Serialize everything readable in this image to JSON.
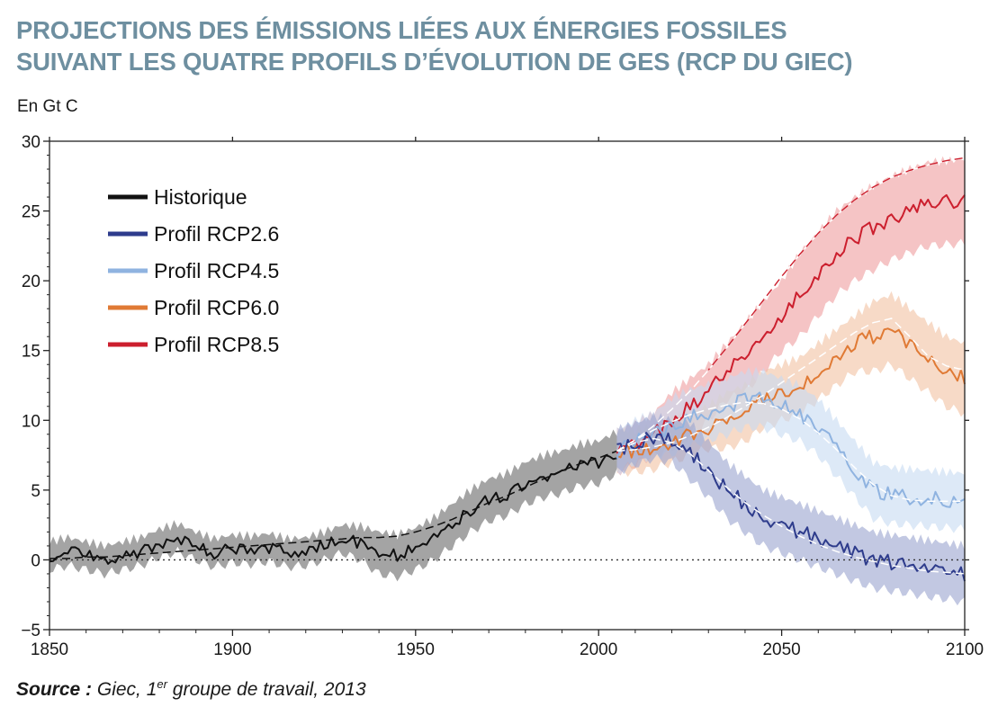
{
  "title": {
    "line1": "PROJECTIONS DES ÉMISSIONS LIÉES AUX ÉNERGIES FOSSILES",
    "line2": "SUIVANT LES QUATRE PROFILS D’ÉVOLUTION DE GES (RCP DU GIEC)"
  },
  "source": {
    "label": "Source :",
    "text_before_sup": " Giec, 1",
    "sup": "er",
    "text_after_sup": " groupe de travail, 2013"
  },
  "colors": {
    "title": "#6e8fa0",
    "historique": "#111111",
    "rcp26": "#2e3c8c",
    "rcp45": "#8fb3e0",
    "rcp60": "#e07a35",
    "rcp85": "#cc1f2e",
    "historique_band": "#9a9a9a",
    "rcp26_band": "#9aa3cf",
    "rcp45_band": "#c6daf2",
    "rcp60_band": "#f2c2a2",
    "rcp85_band": "#ef9d9f"
  },
  "chart_data": {
    "type": "line",
    "title": "PROJECTIONS DES ÉMISSIONS LIÉES AUX ÉNERGIES FOSSILES SUIVANT LES QUATRE PROFILS D’ÉVOLUTION DE GES (RCP DU GIEC)",
    "xlabel": "",
    "ylabel": "En Gt C",
    "xlim": [
      1850,
      2100
    ],
    "ylim": [
      -5,
      30
    ],
    "xticks": [
      1850,
      1900,
      1950,
      2000,
      2050,
      2100
    ],
    "yticks": [
      -5,
      0,
      5,
      10,
      15,
      20,
      25,
      30
    ],
    "grid": false,
    "zero_line": "dotted",
    "legend_position": "top-left",
    "series": [
      {
        "name": "Historique",
        "color": "#111111",
        "band_color": "#9a9a9a",
        "x": [
          1850,
          1855,
          1860,
          1865,
          1870,
          1875,
          1880,
          1885,
          1890,
          1895,
          1900,
          1905,
          1910,
          1915,
          1920,
          1925,
          1930,
          1935,
          1940,
          1945,
          1950,
          1955,
          1960,
          1965,
          1970,
          1975,
          1980,
          1985,
          1990,
          1995,
          2000,
          2005
        ],
        "values": [
          0.3,
          0.6,
          0.3,
          0.0,
          0.3,
          0.6,
          1.2,
          1.6,
          1.0,
          0.5,
          0.8,
          0.7,
          0.9,
          0.5,
          0.6,
          1.0,
          1.5,
          1.2,
          0.5,
          0.3,
          0.8,
          1.5,
          2.5,
          3.5,
          4.3,
          4.7,
          5.5,
          6.0,
          6.3,
          6.8,
          7.0,
          7.7
        ],
        "trend": [
          0.1,
          0.1,
          0.2,
          0.2,
          0.3,
          0.4,
          0.5,
          0.6,
          0.7,
          0.8,
          0.9,
          1.0,
          1.1,
          1.2,
          1.3,
          1.4,
          1.5,
          1.6,
          1.6,
          1.7,
          2.0,
          2.4,
          2.9,
          3.5,
          4.1,
          4.6,
          5.2,
          5.8,
          6.4,
          6.9,
          7.3,
          7.8
        ],
        "band_halfwidth": [
          1.0,
          1.0,
          1.0,
          1.0,
          1.0,
          1.0,
          1.0,
          1.0,
          1.0,
          1.0,
          1.0,
          1.0,
          1.0,
          1.0,
          1.0,
          1.0,
          1.0,
          1.2,
          1.5,
          1.5,
          1.5,
          1.5,
          1.5,
          1.5,
          1.5,
          1.5,
          1.5,
          1.5,
          1.5,
          1.5,
          1.5,
          1.5
        ]
      },
      {
        "name": "Profil RCP2.6",
        "color": "#2e3c8c",
        "band_color": "#9aa3cf",
        "x": [
          2005,
          2010,
          2015,
          2020,
          2025,
          2030,
          2035,
          2040,
          2045,
          2050,
          2055,
          2060,
          2065,
          2070,
          2075,
          2080,
          2085,
          2090,
          2095,
          2100
        ],
        "values": [
          7.8,
          8.3,
          8.8,
          8.5,
          7.8,
          6.5,
          5.0,
          4.0,
          3.0,
          2.5,
          2.0,
          1.5,
          1.0,
          0.5,
          0.0,
          -0.2,
          -0.4,
          -0.6,
          -0.8,
          -1.0
        ],
        "trend": [
          7.8,
          8.4,
          8.7,
          8.4,
          7.6,
          6.4,
          5.2,
          4.1,
          3.2,
          2.4,
          1.7,
          1.1,
          0.6,
          0.2,
          -0.1,
          -0.4,
          -0.6,
          -0.8,
          -0.9,
          -1.0
        ],
        "band_halfwidth": [
          1.5,
          1.5,
          1.5,
          1.5,
          2.0,
          2.0,
          2.0,
          2.0,
          2.0,
          2.0,
          2.0,
          2.0,
          2.0,
          2.0,
          2.0,
          2.0,
          2.0,
          2.0,
          2.0,
          2.0
        ]
      },
      {
        "name": "Profil RCP4.5",
        "color": "#8fb3e0",
        "band_color": "#c6daf2",
        "x": [
          2005,
          2010,
          2015,
          2020,
          2025,
          2030,
          2035,
          2040,
          2045,
          2050,
          2055,
          2060,
          2065,
          2070,
          2075,
          2080,
          2085,
          2090,
          2095,
          2100
        ],
        "values": [
          7.8,
          8.5,
          9.0,
          9.6,
          10.2,
          10.6,
          11.0,
          11.5,
          11.5,
          11.0,
          10.5,
          9.5,
          8.0,
          6.5,
          5.0,
          4.6,
          4.5,
          4.4,
          4.3,
          4.2
        ],
        "trend": [
          7.8,
          8.6,
          9.3,
          9.9,
          10.4,
          10.8,
          11.1,
          11.3,
          11.2,
          10.8,
          10.1,
          9.1,
          7.9,
          6.6,
          5.4,
          4.6,
          4.3,
          4.2,
          4.2,
          4.2
        ],
        "band_halfwidth": [
          1.5,
          1.5,
          1.5,
          2.0,
          2.0,
          2.0,
          2.0,
          2.0,
          2.0,
          2.0,
          2.0,
          2.0,
          2.0,
          2.0,
          2.0,
          2.0,
          2.0,
          2.0,
          2.0,
          2.0
        ]
      },
      {
        "name": "Profil RCP6.0",
        "color": "#e07a35",
        "band_color": "#f2c2a2",
        "x": [
          2005,
          2010,
          2015,
          2020,
          2025,
          2030,
          2035,
          2040,
          2045,
          2050,
          2055,
          2060,
          2065,
          2070,
          2075,
          2080,
          2085,
          2090,
          2095,
          2100
        ],
        "values": [
          7.8,
          7.8,
          8.0,
          8.5,
          9.0,
          9.5,
          10.0,
          10.5,
          11.5,
          12.0,
          12.5,
          13.5,
          14.5,
          15.5,
          16.0,
          16.5,
          15.5,
          14.5,
          13.5,
          13.0
        ],
        "trend": [
          7.8,
          7.9,
          8.1,
          8.4,
          8.9,
          9.5,
          10.2,
          11.0,
          11.8,
          12.7,
          13.6,
          14.5,
          15.4,
          16.3,
          17.0,
          17.3,
          16.0,
          14.6,
          13.9,
          13.6
        ],
        "band_halfwidth": [
          1.5,
          1.5,
          1.5,
          1.5,
          1.5,
          1.5,
          2.0,
          2.0,
          2.0,
          2.0,
          2.0,
          2.0,
          2.0,
          2.0,
          2.5,
          2.5,
          2.5,
          2.5,
          2.5,
          2.5
        ]
      },
      {
        "name": "Profil RCP8.5",
        "color": "#cc1f2e",
        "band_color": "#ef9d9f",
        "x": [
          2005,
          2010,
          2015,
          2020,
          2025,
          2030,
          2035,
          2040,
          2045,
          2050,
          2055,
          2060,
          2065,
          2070,
          2075,
          2080,
          2085,
          2090,
          2095,
          2100
        ],
        "values": [
          7.8,
          8.3,
          9.0,
          10.0,
          11.0,
          12.0,
          13.5,
          14.5,
          16.0,
          17.5,
          19.0,
          20.5,
          22.0,
          23.0,
          23.8,
          24.5,
          25.0,
          25.5,
          25.6,
          25.7
        ],
        "trend": [
          7.8,
          8.6,
          9.6,
          10.8,
          12.1,
          13.6,
          15.2,
          16.9,
          18.6,
          20.3,
          21.9,
          23.4,
          24.7,
          25.8,
          26.7,
          27.4,
          27.9,
          28.3,
          28.6,
          28.8
        ],
        "band_halfwidth": [
          1.5,
          1.5,
          1.5,
          2.0,
          2.0,
          2.0,
          2.0,
          2.5,
          2.5,
          2.5,
          3.0,
          3.0,
          3.0,
          3.0,
          3.0,
          3.0,
          3.0,
          3.0,
          3.0,
          3.0
        ]
      }
    ]
  }
}
